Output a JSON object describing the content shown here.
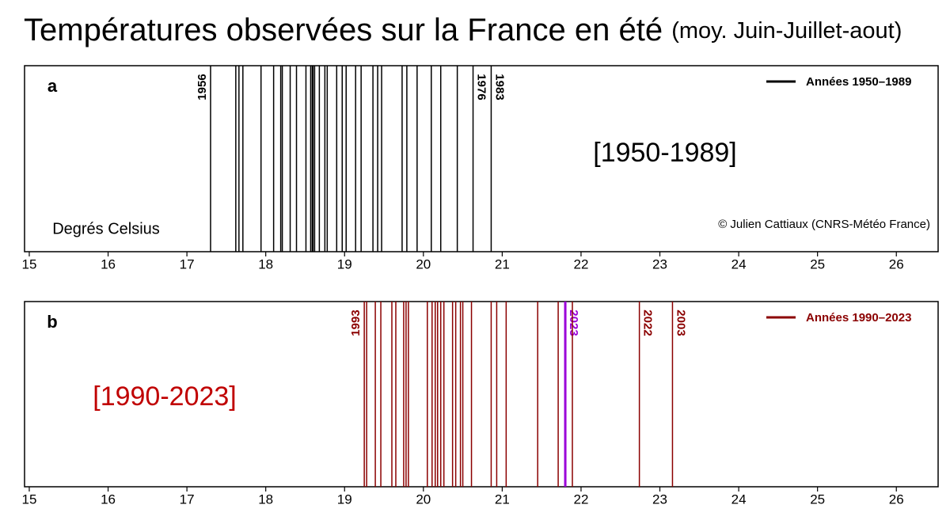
{
  "title": "Températures observées sur la France en été",
  "subtitle": "(moy. Juin-Juillet-aout)",
  "chart_data": [
    {
      "type": "rug",
      "panel_label": "a",
      "series": [
        {
          "name": "Années 1950–1989",
          "color": "#000000",
          "values": [
            17.3,
            17.62,
            17.66,
            17.71,
            17.94,
            18.1,
            18.19,
            18.21,
            18.31,
            18.39,
            18.51,
            18.57,
            18.59,
            18.6,
            18.62,
            18.68,
            18.75,
            18.78,
            18.9,
            18.97,
            19.02,
            19.14,
            19.21,
            19.36,
            19.42,
            19.47,
            19.73,
            19.79,
            19.92,
            20.1,
            20.22,
            20.43,
            20.63,
            20.86
          ],
          "labels": [
            "1956",
            null,
            null,
            null,
            null,
            null,
            null,
            null,
            null,
            null,
            null,
            null,
            null,
            null,
            null,
            null,
            null,
            null,
            null,
            null,
            null,
            null,
            null,
            null,
            null,
            null,
            null,
            null,
            null,
            null,
            null,
            null,
            "1976",
            "1983"
          ]
        }
      ],
      "annotation": {
        "text": "[1950-1989]",
        "color": "#000000"
      },
      "x_label": "Degrés Celsius",
      "credit": "© Julien Cattiaux (CNRS-Météo France)",
      "xlim": [
        14.94,
        26.53
      ],
      "xticks": [
        15,
        16,
        17,
        18,
        19,
        20,
        21,
        22,
        23,
        24,
        25,
        26
      ],
      "legend": "top-right"
    },
    {
      "type": "rug",
      "panel_label": "b",
      "series": [
        {
          "name": "Années 1990–2023",
          "color": "#8b0000",
          "values": [
            19.25,
            19.28,
            19.39,
            19.46,
            19.6,
            19.65,
            19.75,
            19.78,
            19.81,
            20.05,
            20.11,
            20.15,
            20.18,
            20.22,
            20.26,
            20.37,
            20.41,
            20.47,
            20.5,
            20.61,
            20.86,
            20.93,
            21.05,
            21.45,
            21.71,
            21.8,
            21.89,
            22.74,
            23.16
          ],
          "colors": [
            "#8b0000",
            "#8b0000",
            "#8b0000",
            "#8b0000",
            "#8b0000",
            "#8b0000",
            "#8b0000",
            "#8b0000",
            "#8b0000",
            "#8b0000",
            "#8b0000",
            "#8b0000",
            "#8b0000",
            "#8b0000",
            "#8b0000",
            "#8b0000",
            "#8b0000",
            "#8b0000",
            "#8b0000",
            "#8b0000",
            "#8b0000",
            "#8b0000",
            "#8b0000",
            "#8b0000",
            "#8b0000",
            "#9b00d9",
            "#8b0000",
            "#8b0000",
            "#8b0000"
          ],
          "labels": [
            "1993",
            null,
            null,
            null,
            null,
            null,
            null,
            null,
            null,
            null,
            null,
            null,
            null,
            null,
            null,
            null,
            null,
            null,
            null,
            null,
            null,
            null,
            null,
            null,
            null,
            "2023",
            null,
            "2022",
            "2003"
          ]
        }
      ],
      "annotation": {
        "text": "[1990-2023]",
        "color": "#c00000"
      },
      "xlim": [
        14.94,
        26.53
      ],
      "xticks": [
        15,
        16,
        17,
        18,
        19,
        20,
        21,
        22,
        23,
        24,
        25,
        26
      ],
      "legend": "top-right"
    }
  ]
}
